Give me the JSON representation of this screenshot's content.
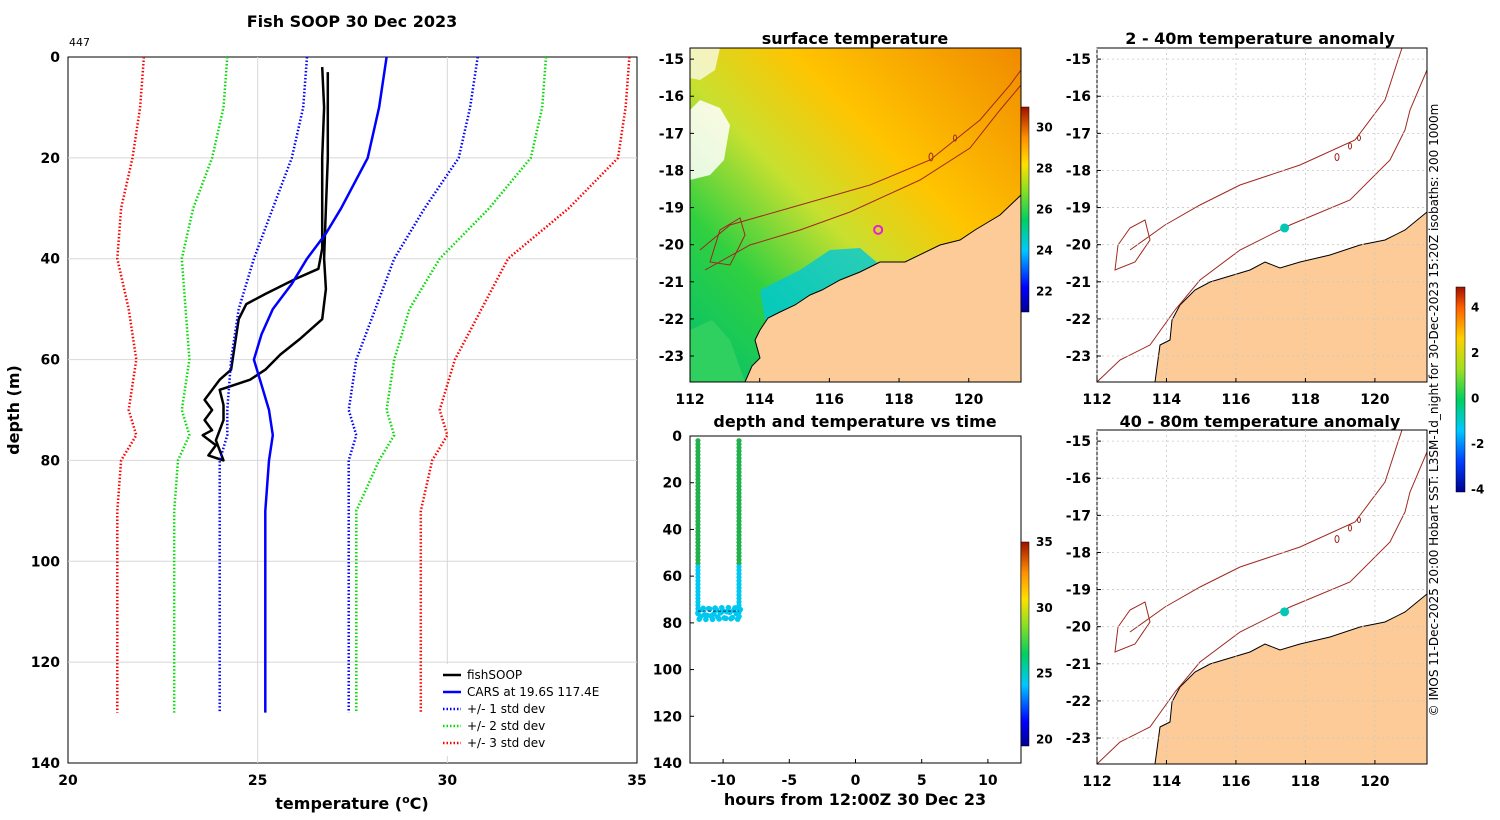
{
  "figure_title": "Fish SOOP 30 Dec 2023",
  "copyright_text": "© IMOS 11-Dec-2025 20:00 Hobart SST: L3SM-1d_night for 30-Dec-2023 15:20Z isobaths: 200  1000m",
  "colors": {
    "fishsoop": "#000000",
    "cars": "#0000ff",
    "std1": "#0000ff",
    "std2": "#00dd00",
    "std3": "#ff0000",
    "land": "#fccb98",
    "contour": "#a0281e",
    "marker_ring": "#e020e0",
    "anomaly_dot": "#00c8b4"
  },
  "chart_data": [
    {
      "type": "line",
      "title": "Fish SOOP 30 Dec 2023",
      "xlabel": "temperature (",
      "xlabel_sup": "o",
      "xlabel_end": "C)",
      "ylabel": "depth (m)",
      "xlim": [
        20,
        35
      ],
      "ylim": [
        0,
        140
      ],
      "y_reversed": true,
      "xticks": [
        "20",
        "25",
        "30",
        "35"
      ],
      "yticks": [
        "0",
        "20",
        "40",
        "60",
        "80",
        "100",
        "120",
        "140"
      ],
      "corner_label": "447",
      "grid": true,
      "legend_position": "bottom-right",
      "series": [
        {
          "name": "fishSOOP",
          "style": "solid",
          "color_key": "fishsoop",
          "points": [
            [
              26.7,
              2
            ],
            [
              26.75,
              10
            ],
            [
              26.7,
              20
            ],
            [
              26.7,
              30
            ],
            [
              26.7,
              38
            ],
            [
              26.6,
              42
            ],
            [
              26.0,
              44
            ],
            [
              25.2,
              47
            ],
            [
              24.7,
              49
            ],
            [
              24.5,
              52
            ],
            [
              24.4,
              57
            ],
            [
              24.3,
              62
            ],
            [
              24.0,
              64
            ],
            [
              23.6,
              68
            ],
            [
              23.8,
              70
            ],
            [
              23.6,
              72
            ],
            [
              23.8,
              74
            ],
            [
              23.55,
              75
            ],
            [
              23.9,
              77
            ],
            [
              23.7,
              79
            ],
            [
              24.1,
              80
            ],
            [
              24.0,
              78
            ],
            [
              23.9,
              76
            ],
            [
              24.0,
              74
            ],
            [
              24.1,
              72
            ],
            [
              24.1,
              69
            ],
            [
              24.0,
              66
            ],
            [
              24.8,
              64
            ],
            [
              25.2,
              62
            ],
            [
              25.6,
              59
            ],
            [
              26.1,
              56
            ],
            [
              26.7,
              52
            ],
            [
              26.8,
              46
            ],
            [
              26.75,
              40
            ],
            [
              26.8,
              30
            ],
            [
              26.85,
              20
            ],
            [
              26.85,
              10
            ],
            [
              26.85,
              3
            ]
          ]
        },
        {
          "name": "CARS at 19.6S 117.4E",
          "style": "solid",
          "color_key": "cars",
          "points": [
            [
              28.4,
              0
            ],
            [
              28.2,
              10
            ],
            [
              27.9,
              20
            ],
            [
              27.2,
              30
            ],
            [
              26.8,
              35
            ],
            [
              26.3,
              40
            ],
            [
              25.9,
              45
            ],
            [
              25.4,
              50
            ],
            [
              25.1,
              55
            ],
            [
              24.9,
              60
            ],
            [
              25.1,
              65
            ],
            [
              25.3,
              70
            ],
            [
              25.4,
              75
            ],
            [
              25.3,
              80
            ],
            [
              25.2,
              90
            ],
            [
              25.2,
              100
            ],
            [
              25.2,
              110
            ],
            [
              25.2,
              120
            ],
            [
              25.2,
              130
            ]
          ]
        },
        {
          "name": "+/- 1 std dev",
          "style": "dotted",
          "color_key": "std1",
          "points_low": [
            [
              26.3,
              0
            ],
            [
              26.2,
              10
            ],
            [
              25.9,
              20
            ],
            [
              25.4,
              30
            ],
            [
              24.9,
              40
            ],
            [
              24.5,
              50
            ],
            [
              24.3,
              60
            ],
            [
              24.2,
              70
            ],
            [
              24.2,
              75
            ],
            [
              24.0,
              80
            ],
            [
              24.0,
              90
            ],
            [
              24.0,
              100
            ],
            [
              24.0,
              110
            ],
            [
              24.0,
              120
            ],
            [
              24.0,
              130
            ]
          ],
          "points_high": [
            [
              30.8,
              0
            ],
            [
              30.6,
              10
            ],
            [
              30.3,
              20
            ],
            [
              29.4,
              30
            ],
            [
              28.6,
              40
            ],
            [
              28.1,
              50
            ],
            [
              27.6,
              60
            ],
            [
              27.4,
              70
            ],
            [
              27.6,
              75
            ],
            [
              27.4,
              80
            ],
            [
              27.4,
              90
            ],
            [
              27.4,
              100
            ],
            [
              27.4,
              110
            ],
            [
              27.4,
              120
            ],
            [
              27.4,
              130
            ]
          ]
        },
        {
          "name": "+/- 2 std dev",
          "style": "dotted",
          "color_key": "std2",
          "points_low": [
            [
              24.2,
              0
            ],
            [
              24.1,
              10
            ],
            [
              23.8,
              20
            ],
            [
              23.3,
              30
            ],
            [
              23.0,
              40
            ],
            [
              23.1,
              50
            ],
            [
              23.2,
              60
            ],
            [
              23.0,
              70
            ],
            [
              23.2,
              75
            ],
            [
              22.9,
              80
            ],
            [
              22.8,
              90
            ],
            [
              22.8,
              100
            ],
            [
              22.8,
              110
            ],
            [
              22.8,
              120
            ],
            [
              22.8,
              130
            ]
          ],
          "points_high": [
            [
              32.6,
              0
            ],
            [
              32.5,
              10
            ],
            [
              32.2,
              20
            ],
            [
              31.1,
              30
            ],
            [
              29.8,
              40
            ],
            [
              29.0,
              50
            ],
            [
              28.6,
              60
            ],
            [
              28.4,
              70
            ],
            [
              28.6,
              75
            ],
            [
              28.2,
              80
            ],
            [
              27.6,
              90
            ],
            [
              27.6,
              100
            ],
            [
              27.6,
              110
            ],
            [
              27.6,
              120
            ],
            [
              27.6,
              130
            ]
          ]
        },
        {
          "name": "+/- 3 std dev",
          "style": "dotted",
          "color_key": "std3",
          "points_low": [
            [
              22.0,
              0
            ],
            [
              21.9,
              10
            ],
            [
              21.7,
              20
            ],
            [
              21.4,
              30
            ],
            [
              21.3,
              40
            ],
            [
              21.6,
              50
            ],
            [
              21.8,
              60
            ],
            [
              21.6,
              70
            ],
            [
              21.8,
              75
            ],
            [
              21.4,
              80
            ],
            [
              21.3,
              90
            ],
            [
              21.3,
              100
            ],
            [
              21.3,
              110
            ],
            [
              21.3,
              120
            ],
            [
              21.3,
              130
            ]
          ],
          "points_high": [
            [
              34.8,
              0
            ],
            [
              34.7,
              10
            ],
            [
              34.5,
              20
            ],
            [
              33.2,
              30
            ],
            [
              31.6,
              40
            ],
            [
              30.9,
              50
            ],
            [
              30.2,
              60
            ],
            [
              29.8,
              70
            ],
            [
              30.0,
              75
            ],
            [
              29.6,
              80
            ],
            [
              29.3,
              90
            ],
            [
              29.3,
              100
            ],
            [
              29.3,
              110
            ],
            [
              29.3,
              120
            ],
            [
              29.3,
              130
            ]
          ]
        }
      ]
    },
    {
      "type": "heatmap",
      "title": "surface temperature",
      "xlim": [
        112,
        121.5
      ],
      "ylim": [
        -23.7,
        -14.7
      ],
      "xticks": [
        "112",
        "114",
        "116",
        "118",
        "120"
      ],
      "yticks": [
        "-15",
        "-16",
        "-17",
        "-18",
        "-19",
        "-20",
        "-21",
        "-22",
        "-23"
      ],
      "colorbar_range": [
        21,
        31
      ],
      "colorbar_ticks": [
        "22",
        "24",
        "26",
        "28",
        "30"
      ],
      "marker": {
        "lon": 117.4,
        "lat": -19.6
      }
    },
    {
      "type": "scatter",
      "title": "depth and temperature vs time",
      "xlabel": "hours from 12:00Z 30 Dec 23",
      "xlim": [
        -12.5,
        12.5
      ],
      "ylim": [
        0,
        140
      ],
      "y_reversed": true,
      "xticks": [
        "-10",
        "-5",
        "0",
        "5",
        "10"
      ],
      "yticks": [
        "0",
        "20",
        "40",
        "60",
        "80",
        "100",
        "120",
        "140"
      ],
      "colorbar_range": [
        19.5,
        35
      ],
      "colorbar_ticks": [
        "20",
        "25",
        "30",
        "35"
      ],
      "profiles": [
        {
          "x": [
            -11.9,
            -11.8,
            -11.7,
            -11.6,
            -11.5,
            -11.4,
            -11.3,
            -11.2,
            -11.1,
            -11.0,
            -10.9,
            -10.8,
            -10.7,
            -10.6,
            -10.5,
            -10.4,
            -10.3,
            -10.2,
            -10.1,
            -10.0,
            -9.9,
            -9.8,
            -9.7,
            -9.6,
            -9.5,
            -9.4,
            -9.3,
            -9.2,
            -9.1,
            -9.0,
            -8.9,
            -8.8,
            -8.7
          ],
          "bottom": 76
        }
      ]
    },
    {
      "type": "heatmap",
      "title": "2 - 40m temperature anomaly",
      "xlim": [
        112,
        121.5
      ],
      "ylim": [
        -23.7,
        -14.7
      ],
      "xticks": [
        "112",
        "114",
        "116",
        "118",
        "120"
      ],
      "yticks": [
        "-15",
        "-16",
        "-17",
        "-18",
        "-19",
        "-20",
        "-21",
        "-22",
        "-23"
      ],
      "dot": {
        "lon": 117.4,
        "lat": -19.55
      }
    },
    {
      "type": "heatmap",
      "title": "40 - 80m temperature anomaly",
      "xlim": [
        112,
        121.5
      ],
      "ylim": [
        -23.7,
        -14.7
      ],
      "xticks": [
        "112",
        "114",
        "116",
        "118",
        "120"
      ],
      "yticks": [
        "-15",
        "-16",
        "-17",
        "-18",
        "-19",
        "-20",
        "-21",
        "-22",
        "-23"
      ],
      "dot": {
        "lon": 117.4,
        "lat": -19.6
      }
    },
    {
      "type": "colorbar",
      "colorbar_range": [
        -4.1,
        4.9
      ],
      "colorbar_ticks": [
        "4",
        "2",
        "0",
        "-2",
        "-4"
      ]
    }
  ]
}
